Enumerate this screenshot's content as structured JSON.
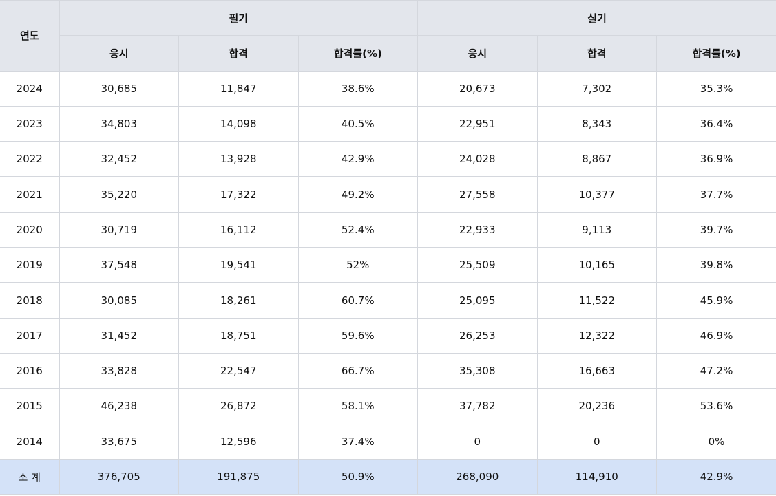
{
  "header": {
    "year_label": "연도",
    "group1": "필기",
    "group2": "실기",
    "sub": [
      "응시",
      "합격",
      "합격률(%)",
      "응시",
      "합격",
      "합격률(%)"
    ]
  },
  "rows": [
    {
      "year": "2024",
      "cells": [
        "30,685",
        "11,847",
        "38.6%",
        "20,673",
        "7,302",
        "35.3%"
      ]
    },
    {
      "year": "2023",
      "cells": [
        "34,803",
        "14,098",
        "40.5%",
        "22,951",
        "8,343",
        "36.4%"
      ]
    },
    {
      "year": "2022",
      "cells": [
        "32,452",
        "13,928",
        "42.9%",
        "24,028",
        "8,867",
        "36.9%"
      ]
    },
    {
      "year": "2021",
      "cells": [
        "35,220",
        "17,322",
        "49.2%",
        "27,558",
        "10,377",
        "37.7%"
      ]
    },
    {
      "year": "2020",
      "cells": [
        "30,719",
        "16,112",
        "52.4%",
        "22,933",
        "9,113",
        "39.7%"
      ]
    },
    {
      "year": "2019",
      "cells": [
        "37,548",
        "19,541",
        "52%",
        "25,509",
        "10,165",
        "39.8%"
      ]
    },
    {
      "year": "2018",
      "cells": [
        "30,085",
        "18,261",
        "60.7%",
        "25,095",
        "11,522",
        "45.9%"
      ]
    },
    {
      "year": "2017",
      "cells": [
        "31,452",
        "18,751",
        "59.6%",
        "26,253",
        "12,322",
        "46.9%"
      ]
    },
    {
      "year": "2016",
      "cells": [
        "33,828",
        "22,547",
        "66.7%",
        "35,308",
        "16,663",
        "47.2%"
      ]
    },
    {
      "year": "2015",
      "cells": [
        "46,238",
        "26,872",
        "58.1%",
        "37,782",
        "20,236",
        "53.6%"
      ]
    },
    {
      "year": "2014",
      "cells": [
        "33,675",
        "12,596",
        "37.4%",
        "0",
        "0",
        "0%"
      ]
    }
  ],
  "total": {
    "label": "소 계",
    "cells": [
      "376,705",
      "191,875",
      "50.9%",
      "268,090",
      "114,910",
      "42.9%"
    ]
  }
}
